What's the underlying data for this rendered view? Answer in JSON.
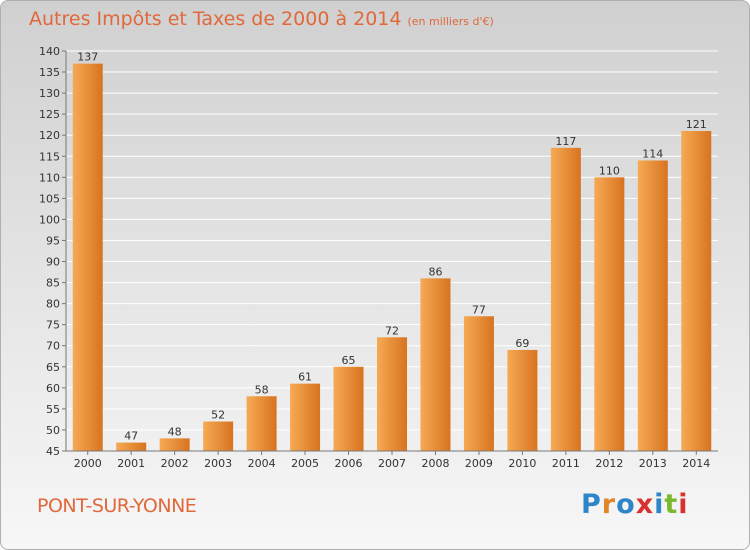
{
  "header": {
    "title": "Autres Impôts et Taxes de 2000 à 2014",
    "unit": "(en milliers d'€)"
  },
  "footer": {
    "place": "PONT-SUR-YONNE",
    "logo": {
      "text": "Proxiti",
      "letter_colors": [
        "#2e86c8",
        "#e0862a",
        "#2e86c8",
        "#d8322e",
        "#2e86c8",
        "#7ab82e",
        "#d8322e"
      ]
    }
  },
  "colors": {
    "bar_light": "#f6aa55",
    "bar_dark": "#d8731f",
    "text": "#e0683a",
    "axis": "#777777",
    "grid": "#ffffff"
  },
  "chart_data": {
    "type": "bar",
    "categories": [
      "2000",
      "2001",
      "2002",
      "2003",
      "2004",
      "2005",
      "2006",
      "2007",
      "2008",
      "2009",
      "2010",
      "2011",
      "2012",
      "2013",
      "2014"
    ],
    "values": [
      137,
      47,
      48,
      52,
      58,
      61,
      65,
      72,
      86,
      77,
      69,
      117,
      110,
      114,
      121
    ],
    "ylim": [
      45,
      140
    ],
    "yticks": [
      45,
      50,
      55,
      60,
      65,
      70,
      75,
      80,
      85,
      90,
      95,
      100,
      105,
      110,
      115,
      120,
      125,
      130,
      135,
      140
    ],
    "grid": true,
    "data_labels": true
  }
}
